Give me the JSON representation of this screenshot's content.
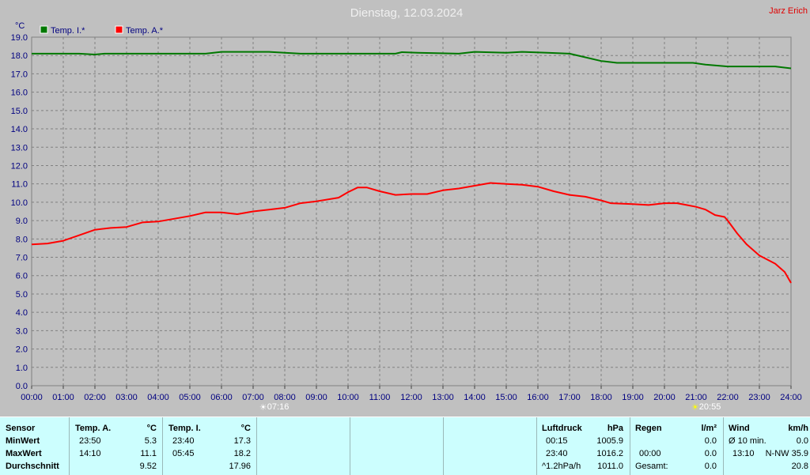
{
  "chart_data": {
    "type": "line",
    "title": "Dienstag, 12.03.2024",
    "author": "Jarz Erich",
    "unit": "°C",
    "ylim": [
      0,
      19
    ],
    "y_ticks": [
      "0.0",
      "1.0",
      "2.0",
      "3.0",
      "4.0",
      "5.0",
      "6.0",
      "7.0",
      "8.0",
      "9.0",
      "10.0",
      "11.0",
      "12.0",
      "13.0",
      "14.0",
      "15.0",
      "16.0",
      "17.0",
      "18.0",
      "19.0"
    ],
    "xlim": [
      0,
      24
    ],
    "x_ticks": [
      "00:00",
      "01:00",
      "02:00",
      "03:00",
      "04:00",
      "05:00",
      "06:00",
      "07:00",
      "08:00",
      "09:00",
      "10:00",
      "11:00",
      "12:00",
      "13:00",
      "14:00",
      "15:00",
      "16:00",
      "17:00",
      "18:00",
      "19:00",
      "20:00",
      "21:00",
      "22:00",
      "23:00",
      "24:00"
    ],
    "grid": true,
    "legend": "top-left",
    "markers": [
      {
        "name": "sunrise",
        "x": 7.27,
        "label": "07:16"
      },
      {
        "name": "sunset",
        "x": 20.92,
        "label": "20:55"
      }
    ],
    "series": [
      {
        "name": "Temp. I.*",
        "color": "#007800",
        "points": [
          [
            0,
            18.1
          ],
          [
            1.5,
            18.1
          ],
          [
            2.0,
            18.05
          ],
          [
            2.3,
            18.1
          ],
          [
            3.5,
            18.1
          ],
          [
            5.5,
            18.1
          ],
          [
            6.0,
            18.2
          ],
          [
            7.5,
            18.2
          ],
          [
            8.5,
            18.1
          ],
          [
            11.5,
            18.1
          ],
          [
            11.7,
            18.18
          ],
          [
            12.2,
            18.15
          ],
          [
            13.5,
            18.1
          ],
          [
            14.0,
            18.2
          ],
          [
            15.0,
            18.15
          ],
          [
            15.5,
            18.2
          ],
          [
            16.3,
            18.15
          ],
          [
            17.0,
            18.1
          ],
          [
            17.5,
            17.9
          ],
          [
            18.0,
            17.7
          ],
          [
            18.5,
            17.6
          ],
          [
            20.0,
            17.6
          ],
          [
            20.9,
            17.6
          ],
          [
            21.3,
            17.5
          ],
          [
            22.0,
            17.4
          ],
          [
            23.5,
            17.4
          ],
          [
            24.0,
            17.3
          ]
        ]
      },
      {
        "name": "Temp. A.*",
        "color": "#ff0000",
        "points": [
          [
            0,
            7.7
          ],
          [
            0.5,
            7.75
          ],
          [
            1.0,
            7.9
          ],
          [
            1.5,
            8.2
          ],
          [
            2.0,
            8.5
          ],
          [
            2.5,
            8.6
          ],
          [
            3.0,
            8.65
          ],
          [
            3.5,
            8.9
          ],
          [
            4.0,
            8.95
          ],
          [
            4.5,
            9.1
          ],
          [
            5.0,
            9.25
          ],
          [
            5.5,
            9.45
          ],
          [
            6.0,
            9.45
          ],
          [
            6.5,
            9.35
          ],
          [
            7.0,
            9.5
          ],
          [
            7.5,
            9.6
          ],
          [
            8.0,
            9.7
          ],
          [
            8.5,
            9.95
          ],
          [
            9.0,
            10.05
          ],
          [
            9.7,
            10.25
          ],
          [
            10.0,
            10.55
          ],
          [
            10.3,
            10.8
          ],
          [
            10.6,
            10.8
          ],
          [
            11.0,
            10.6
          ],
          [
            11.5,
            10.4
          ],
          [
            12.0,
            10.45
          ],
          [
            12.5,
            10.45
          ],
          [
            13.0,
            10.65
          ],
          [
            13.5,
            10.75
          ],
          [
            14.0,
            10.9
          ],
          [
            14.5,
            11.05
          ],
          [
            15.0,
            11.0
          ],
          [
            15.5,
            10.95
          ],
          [
            16.0,
            10.85
          ],
          [
            16.5,
            10.6
          ],
          [
            17.0,
            10.4
          ],
          [
            17.5,
            10.3
          ],
          [
            18.0,
            10.1
          ],
          [
            18.3,
            9.95
          ],
          [
            19.0,
            9.9
          ],
          [
            19.5,
            9.85
          ],
          [
            20.0,
            9.95
          ],
          [
            20.4,
            9.95
          ],
          [
            20.7,
            9.85
          ],
          [
            21.0,
            9.75
          ],
          [
            21.3,
            9.6
          ],
          [
            21.6,
            9.3
          ],
          [
            21.9,
            9.2
          ],
          [
            22.0,
            9.0
          ],
          [
            22.3,
            8.3
          ],
          [
            22.6,
            7.7
          ],
          [
            23.0,
            7.1
          ],
          [
            23.5,
            6.65
          ],
          [
            23.8,
            6.2
          ],
          [
            24.0,
            5.6
          ]
        ]
      }
    ]
  },
  "stats": {
    "sensor": {
      "header": "Sensor",
      "rows": [
        "MinWert",
        "MaxWert",
        "Durchschnitt"
      ]
    },
    "temp_a": {
      "header": "Temp. A.",
      "unit": "°C",
      "min_time": "23:50",
      "min_val": "5.3",
      "max_time": "14:10",
      "max_val": "11.1",
      "avg_val": "9.52"
    },
    "temp_i": {
      "header": "Temp. I.",
      "unit": "°C",
      "min_time": "23:40",
      "min_val": "17.3",
      "max_time": "05:45",
      "max_val": "18.2",
      "avg_val": "17.96"
    },
    "pressure": {
      "header": "Luftdruck",
      "unit": "hPa",
      "min_time": "00:15",
      "min_val": "1005.9",
      "max_time": "23:40",
      "max_val": "1016.2",
      "trend_label": "^1.2hPa/h",
      "trend_val": "1011.0"
    },
    "rain": {
      "header": "Regen",
      "unit": "l/m²",
      "min_val": "0.0",
      "max_time": "00:00",
      "max_val": "0.0",
      "total_label": "Gesamt:",
      "total_val": "0.0"
    },
    "wind": {
      "header": "Wind",
      "unit": "km/h",
      "avg_label": "Ø 10 min.",
      "avg_val": "0.0",
      "max_time": "13:10",
      "max_val": "N-NW 35.9",
      "mean_val": "20.8"
    }
  }
}
